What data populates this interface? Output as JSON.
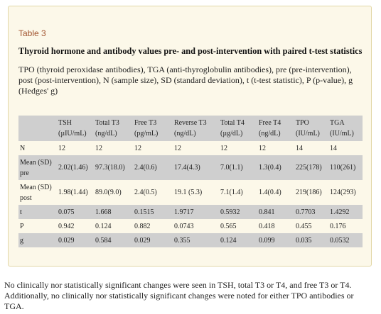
{
  "table": {
    "label": "Table 3",
    "title": "Thyroid hormone and antibody values pre- and post-intervention with paired t-test statistics",
    "caption": "TPO (thyroid peroxidase antibodies), TGA (anti-thyroglobulin antibodies), pre (pre-intervention), post (post-intervention), N (sample size), SD (standard deviation), t (t-test statistic), P (p-value), g (Hedges' g)",
    "columns": [
      {
        "name": "",
        "unit": ""
      },
      {
        "name": "TSH",
        "unit": "(µIU/mL)"
      },
      {
        "name": "Total T3",
        "unit": "(ng/dL)"
      },
      {
        "name": "Free T3",
        "unit": "(pg/mL)"
      },
      {
        "name": "Reverse T3",
        "unit": "(ng/dL)"
      },
      {
        "name": "Total T4",
        "unit": "(µg/dL)"
      },
      {
        "name": "Free T4",
        "unit": "(ng/dL)"
      },
      {
        "name": "TPO",
        "unit": "(IU/mL)"
      },
      {
        "name": "TGA",
        "unit": "(IU/mL)"
      }
    ],
    "rows": [
      {
        "label": "N",
        "values": [
          "12",
          "12",
          "12",
          "12",
          "12",
          "12",
          "14",
          "14"
        ]
      },
      {
        "label": "Mean (SD) pre",
        "values": [
          "2.02(1.46)",
          "97.3(18.0)",
          "2.4(0.6)",
          "17.4(4.3)",
          "7.0(1.1)",
          "1.3(0.4)",
          "225(178)",
          "110(261)"
        ]
      },
      {
        "label": "Mean (SD) post",
        "values": [
          "1.98(1.44)",
          "89.0(9.0)",
          "2.4(0.5)",
          "19.1 (5.3)",
          "7.1(1.4)",
          "1.4(0.4)",
          "219(186)",
          "124(293)"
        ]
      },
      {
        "label": "t",
        "values": [
          "0.075",
          "1.668",
          "0.1515",
          "1.9717",
          "0.5932",
          "0.841",
          "0.7703",
          "1.4292"
        ]
      },
      {
        "label": "P",
        "values": [
          "0.942",
          "0.124",
          "0.882",
          "0.0743",
          "0.565",
          "0.418",
          "0.455",
          "0.176"
        ]
      },
      {
        "label": "g",
        "values": [
          "0.029",
          "0.584",
          "0.029",
          "0.355",
          "0.124",
          "0.099",
          "0.035",
          "0.0532"
        ]
      }
    ]
  },
  "footnote": "No clinically nor statistically significant changes were seen in TSH, total T3 or T4, and free T3 or T4. Additionally, no clinically nor statistically significant changes were noted for either TPO antibodies or TGA."
}
